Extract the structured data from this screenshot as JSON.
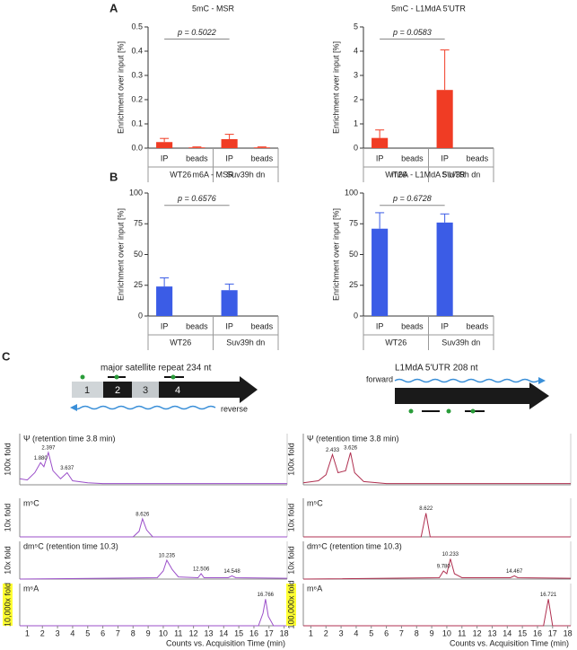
{
  "panel_labels": [
    "A",
    "B",
    "C"
  ],
  "chart_data": [
    {
      "type": "bar",
      "title": "5mC - MSR",
      "ylabel": "Enrichment over input [%]",
      "categories": [
        "IP",
        "beads",
        "IP",
        "beads"
      ],
      "groups": [
        "WT26",
        "Suv39h dn"
      ],
      "values": [
        0.025,
        0.003,
        0.037,
        0.003
      ],
      "errors": [
        0.015,
        0.002,
        0.02,
        0.002
      ],
      "color": "#f03c24",
      "ylim": [
        0,
        0.5
      ],
      "yticks": [
        {
          "value": 0,
          "label": "0.0"
        },
        0.1,
        0.2,
        0.3,
        0.4,
        0.5
      ],
      "annotation": "p = 0.5022"
    },
    {
      "type": "bar",
      "title": "5mC - L1MdA 5'UTR",
      "ylabel": "Enrichment over input [%]",
      "categories": [
        "IP",
        "beads",
        "IP",
        "beads"
      ],
      "groups": [
        "WT26",
        "Suv39h dn"
      ],
      "values": [
        0.42,
        0,
        2.4,
        0
      ],
      "errors": [
        0.33,
        0,
        1.65,
        0
      ],
      "color": "#f03c24",
      "ylim": [
        0,
        5
      ],
      "yticks": [
        0,
        1,
        2,
        3,
        4,
        5
      ],
      "annotation": "p = 0.0583"
    },
    {
      "type": "bar",
      "title": "m6A - MSR",
      "ylabel": "Enrichment over input [%]",
      "categories": [
        "IP",
        "beads",
        "IP",
        "beads"
      ],
      "groups": [
        "WT26",
        "Suv39h dn"
      ],
      "values": [
        24,
        0,
        21,
        0
      ],
      "errors": [
        7,
        0,
        5,
        0
      ],
      "color": "#3b5ce6",
      "ylim": [
        0,
        100
      ],
      "yticks": [
        0,
        25,
        50,
        75,
        100
      ],
      "annotation": "p = 0.6576"
    },
    {
      "type": "bar",
      "title": "m6A - L1MdA 5'UTR",
      "ylabel": "Enrichment over input [%]",
      "categories": [
        "IP",
        "beads",
        "IP",
        "beads"
      ],
      "groups": [
        "WT26",
        "Suv39h dn"
      ],
      "values": [
        71,
        0,
        76,
        0
      ],
      "errors": [
        13,
        0,
        7,
        0
      ],
      "color": "#3b5ce6",
      "ylim": [
        0,
        100
      ],
      "yticks": [
        0,
        25,
        50,
        75,
        100
      ],
      "annotation": "p = 0.6728"
    },
    {
      "type": "line",
      "title": "Ψ (retention time 3.8 min)",
      "ylabel": "100x fold",
      "color": "#9b4fc9",
      "xlim": [
        0.5,
        18.2
      ],
      "ylim": [
        0,
        1
      ],
      "x": [
        0.5,
        1,
        1.5,
        1.88,
        2.1,
        2.397,
        2.7,
        3.2,
        3.637,
        4,
        5,
        6,
        18.2
      ],
      "values": [
        0.15,
        0.12,
        0.3,
        0.55,
        0.45,
        0.8,
        0.35,
        0.15,
        0.3,
        0.1,
        0.05,
        0.03,
        0.03
      ],
      "peaks": [
        {
          "value": 1.88,
          "label": "1.880"
        },
        2.397,
        3.637
      ]
    },
    {
      "type": "line",
      "title": "m⁵C",
      "ylabel": "10x fold",
      "color": "#9b4fc9",
      "xlim": [
        0.5,
        18.2
      ],
      "ylim": [
        0,
        1
      ],
      "x": [
        0.5,
        8,
        8.4,
        8.626,
        8.9,
        9.3,
        18.2
      ],
      "values": [
        0,
        0,
        0.2,
        0.65,
        0.25,
        0,
        0
      ],
      "peaks": [
        8.626
      ]
    },
    {
      "type": "line",
      "title": "dm⁵C (retention time 10.3)",
      "ylabel": "10x fold",
      "color": "#9b4fc9",
      "xlim": [
        0.5,
        18.2
      ],
      "ylim": [
        0,
        1
      ],
      "x": [
        0.5,
        9.6,
        10,
        10.235,
        10.6,
        11,
        12.3,
        12.506,
        12.7,
        14.3,
        14.548,
        14.8,
        18.2
      ],
      "values": [
        0,
        0.05,
        0.3,
        0.7,
        0.35,
        0.08,
        0.05,
        0.2,
        0.05,
        0.05,
        0.12,
        0.05,
        0.03
      ],
      "peaks": [
        10.235,
        12.506,
        14.548
      ]
    },
    {
      "type": "line",
      "title": "m⁶A",
      "ylabel": "10,000x fold",
      "ylabel_highlight": "#ffff33",
      "color": "#9b4fc9",
      "xlim": [
        0.5,
        18.2
      ],
      "ylim": [
        0,
        1
      ],
      "x": [
        0.5,
        16.3,
        16.6,
        16.766,
        16.95,
        17.3,
        18.2
      ],
      "values": [
        0,
        0,
        0.4,
        0.85,
        0.3,
        0,
        0
      ],
      "peaks": [
        16.766
      ],
      "xticks": [
        1,
        2,
        3,
        4,
        5,
        6,
        7,
        8,
        9,
        10,
        11,
        12,
        13,
        14,
        15,
        16,
        17,
        18
      ],
      "xlabel": "Counts vs. Acquisition Time (min)"
    },
    {
      "type": "line",
      "title": "Ψ (retention time 3.8 min)",
      "ylabel": "100x fold",
      "color": "#b03050",
      "xlim": [
        0.5,
        18.2
      ],
      "ylim": [
        0,
        1
      ],
      "x": [
        0.5,
        1.5,
        2,
        2.433,
        2.8,
        3.3,
        3.626,
        3.9,
        4.5,
        6,
        18.2
      ],
      "values": [
        0.05,
        0.1,
        0.25,
        0.75,
        0.3,
        0.35,
        0.8,
        0.3,
        0.08,
        0.03,
        0.03
      ],
      "peaks": [
        2.433,
        3.626
      ]
    },
    {
      "type": "line",
      "title": "m⁵C",
      "ylabel": "10x fold",
      "color": "#b03050",
      "xlim": [
        0.5,
        18.2
      ],
      "ylim": [
        0,
        1
      ],
      "x": [
        0.5,
        8.3,
        8.622,
        8.9,
        18.2
      ],
      "values": [
        0,
        0,
        0.85,
        0,
        0
      ],
      "peaks": [
        8.622
      ]
    },
    {
      "type": "line",
      "title": "dm⁵C (retention time 10.3)",
      "ylabel": "10x fold",
      "color": "#b03050",
      "xlim": [
        0.5,
        18.2
      ],
      "ylim": [
        0,
        1
      ],
      "x": [
        0.5,
        9.5,
        9.78,
        10,
        10.233,
        10.5,
        11,
        14.2,
        14.467,
        14.7,
        18.2
      ],
      "values": [
        0,
        0.05,
        0.3,
        0.2,
        0.75,
        0.2,
        0.05,
        0.05,
        0.12,
        0.05,
        0.03
      ],
      "peaks": [
        {
          "value": 9.78,
          "label": "9.780"
        },
        10.233,
        14.467
      ]
    },
    {
      "type": "line",
      "title": "m⁶A",
      "ylabel": "100,000x fold",
      "ylabel_highlight": "#ffff33",
      "color": "#b03050",
      "xlim": [
        0.5,
        18.2
      ],
      "ylim": [
        0,
        1
      ],
      "x": [
        0.5,
        16.4,
        16.721,
        17,
        18.2
      ],
      "values": [
        0,
        0,
        0.85,
        0,
        0
      ],
      "peaks": [
        16.721
      ],
      "xticks": [
        1,
        2,
        3,
        4,
        5,
        6,
        7,
        8,
        9,
        10,
        11,
        12,
        13,
        14,
        15,
        16,
        17,
        18
      ],
      "xlabel": "Counts vs. Acquisition Time (min)"
    }
  ],
  "diagrams": {
    "left": {
      "title": "major satellite repeat 234 nt",
      "segments": [
        "1",
        "2",
        "3",
        "4"
      ],
      "direction": "reverse"
    },
    "right": {
      "title": "L1MdA 5'UTR 208 nt",
      "direction": "forward"
    }
  }
}
